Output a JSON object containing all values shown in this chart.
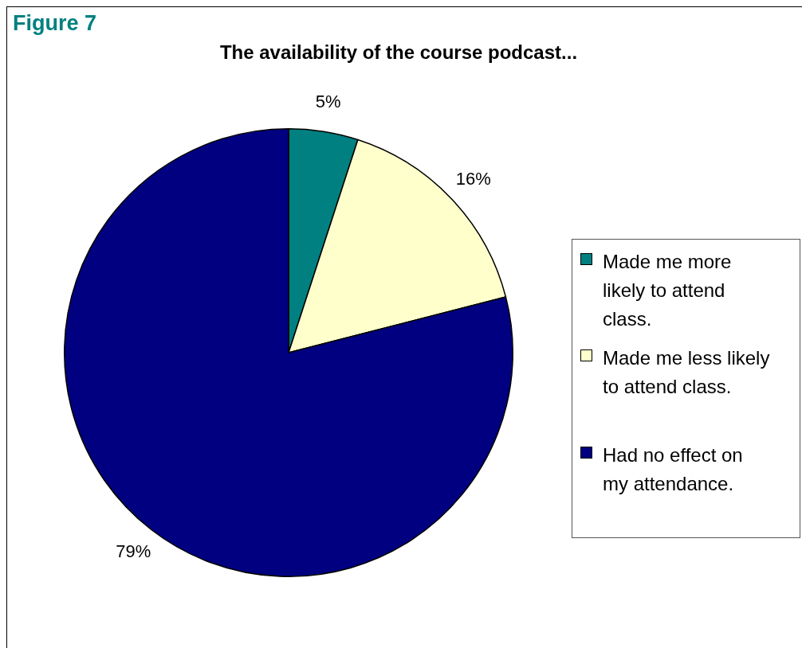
{
  "chart_data": {
    "type": "pie",
    "title": "The availability of the course podcast...",
    "annotations": [
      "Figure 7"
    ],
    "categories": [
      "Made me more likely to attend class.",
      "Made me less likely to attend class.",
      "Had no effect on my attendance."
    ],
    "values": [
      5,
      16,
      79
    ],
    "colors": [
      "#008080",
      "#ffffcc",
      "#000080"
    ],
    "value_labels": [
      "5%",
      "16%",
      "79%"
    ],
    "legend": "right"
  }
}
